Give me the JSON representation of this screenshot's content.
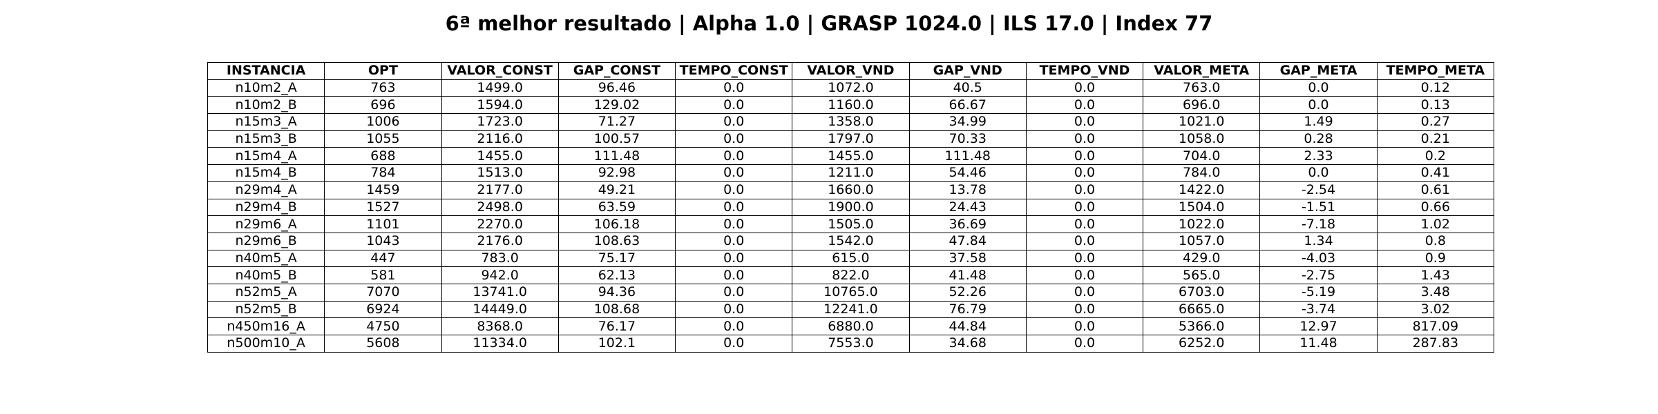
{
  "title": "6ª melhor resultado | Alpha 1.0 | GRASP 1024.0 | ILS 17.0 | Index 77",
  "chart_data": {
    "type": "table",
    "title": "6ª melhor resultado | Alpha 1.0 | GRASP 1024.0 | ILS 17.0 | Index 77",
    "columns": [
      "INSTANCIA",
      "OPT",
      "VALOR_CONST",
      "GAP_CONST",
      "TEMPO_CONST",
      "VALOR_VND",
      "GAP_VND",
      "TEMPO_VND",
      "VALOR_META",
      "GAP_META",
      "TEMPO_META"
    ],
    "rows": [
      [
        "n10m2_A",
        "763",
        "1499.0",
        "96.46",
        "0.0",
        "1072.0",
        "40.5",
        "0.0",
        "763.0",
        "0.0",
        "0.12"
      ],
      [
        "n10m2_B",
        "696",
        "1594.0",
        "129.02",
        "0.0",
        "1160.0",
        "66.67",
        "0.0",
        "696.0",
        "0.0",
        "0.13"
      ],
      [
        "n15m3_A",
        "1006",
        "1723.0",
        "71.27",
        "0.0",
        "1358.0",
        "34.99",
        "0.0",
        "1021.0",
        "1.49",
        "0.27"
      ],
      [
        "n15m3_B",
        "1055",
        "2116.0",
        "100.57",
        "0.0",
        "1797.0",
        "70.33",
        "0.0",
        "1058.0",
        "0.28",
        "0.21"
      ],
      [
        "n15m4_A",
        "688",
        "1455.0",
        "111.48",
        "0.0",
        "1455.0",
        "111.48",
        "0.0",
        "704.0",
        "2.33",
        "0.2"
      ],
      [
        "n15m4_B",
        "784",
        "1513.0",
        "92.98",
        "0.0",
        "1211.0",
        "54.46",
        "0.0",
        "784.0",
        "0.0",
        "0.41"
      ],
      [
        "n29m4_A",
        "1459",
        "2177.0",
        "49.21",
        "0.0",
        "1660.0",
        "13.78",
        "0.0",
        "1422.0",
        "-2.54",
        "0.61"
      ],
      [
        "n29m4_B",
        "1527",
        "2498.0",
        "63.59",
        "0.0",
        "1900.0",
        "24.43",
        "0.0",
        "1504.0",
        "-1.51",
        "0.66"
      ],
      [
        "n29m6_A",
        "1101",
        "2270.0",
        "106.18",
        "0.0",
        "1505.0",
        "36.69",
        "0.0",
        "1022.0",
        "-7.18",
        "1.02"
      ],
      [
        "n29m6_B",
        "1043",
        "2176.0",
        "108.63",
        "0.0",
        "1542.0",
        "47.84",
        "0.0",
        "1057.0",
        "1.34",
        "0.8"
      ],
      [
        "n40m5_A",
        "447",
        "783.0",
        "75.17",
        "0.0",
        "615.0",
        "37.58",
        "0.0",
        "429.0",
        "-4.03",
        "0.9"
      ],
      [
        "n40m5_B",
        "581",
        "942.0",
        "62.13",
        "0.0",
        "822.0",
        "41.48",
        "0.0",
        "565.0",
        "-2.75",
        "1.43"
      ],
      [
        "n52m5_A",
        "7070",
        "13741.0",
        "94.36",
        "0.0",
        "10765.0",
        "52.26",
        "0.0",
        "6703.0",
        "-5.19",
        "3.48"
      ],
      [
        "n52m5_B",
        "6924",
        "14449.0",
        "108.68",
        "0.0",
        "12241.0",
        "76.79",
        "0.0",
        "6665.0",
        "-3.74",
        "3.02"
      ],
      [
        "n450m16_A",
        "4750",
        "8368.0",
        "76.17",
        "0.0",
        "6880.0",
        "44.84",
        "0.0",
        "5366.0",
        "12.97",
        "817.09"
      ],
      [
        "n500m10_A",
        "5608",
        "11334.0",
        "102.1",
        "0.0",
        "7553.0",
        "34.68",
        "0.0",
        "6252.0",
        "11.48",
        "287.83"
      ]
    ]
  }
}
